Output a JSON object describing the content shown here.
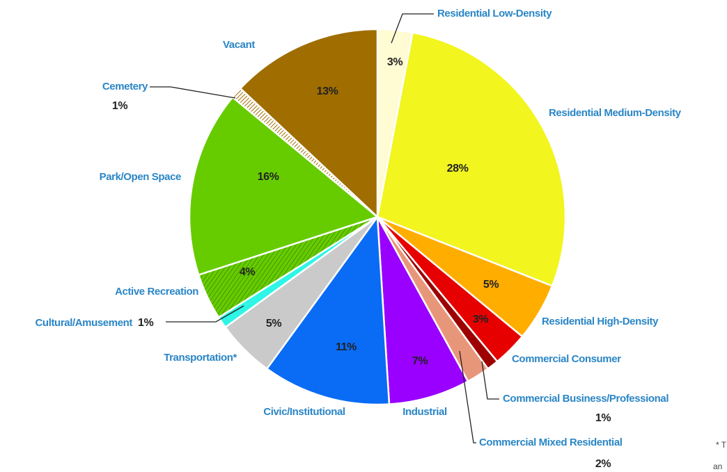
{
  "chart_data": {
    "type": "pie",
    "categories": [
      "Residential Low-Density",
      "Residential Medium-Density",
      "Residential High-Density",
      "Commercial Consumer",
      "Commercial Business/Professional",
      "Commercial Mixed Residential",
      "Industrial",
      "Civic/Institutional",
      "Transportation*",
      "Cultural/Amusement",
      "Active Recreation",
      "Park/Open Space",
      "Cemetery",
      "Vacant"
    ],
    "values": [
      3,
      28,
      5,
      3,
      1,
      2,
      7,
      11,
      5,
      1,
      4,
      16,
      1,
      13
    ],
    "value_labels": [
      "3%",
      "28%",
      "5%",
      "3%",
      "1%",
      "2%",
      "7%",
      "11%",
      "5%",
      "1%",
      "4%",
      "16%",
      "1%",
      "13%"
    ],
    "colors": [
      "#fffbd2",
      "#f2f51e",
      "#ffae00",
      "#e60000",
      "#9e0000",
      "#e8967a",
      "#9900ff",
      "#0a6cf5",
      "#cacaca",
      "#2ef5e6",
      "#5cb300",
      "#66cc00",
      "#a06d00",
      "#a06d00"
    ],
    "footnote": [
      "* T",
      "an"
    ]
  }
}
